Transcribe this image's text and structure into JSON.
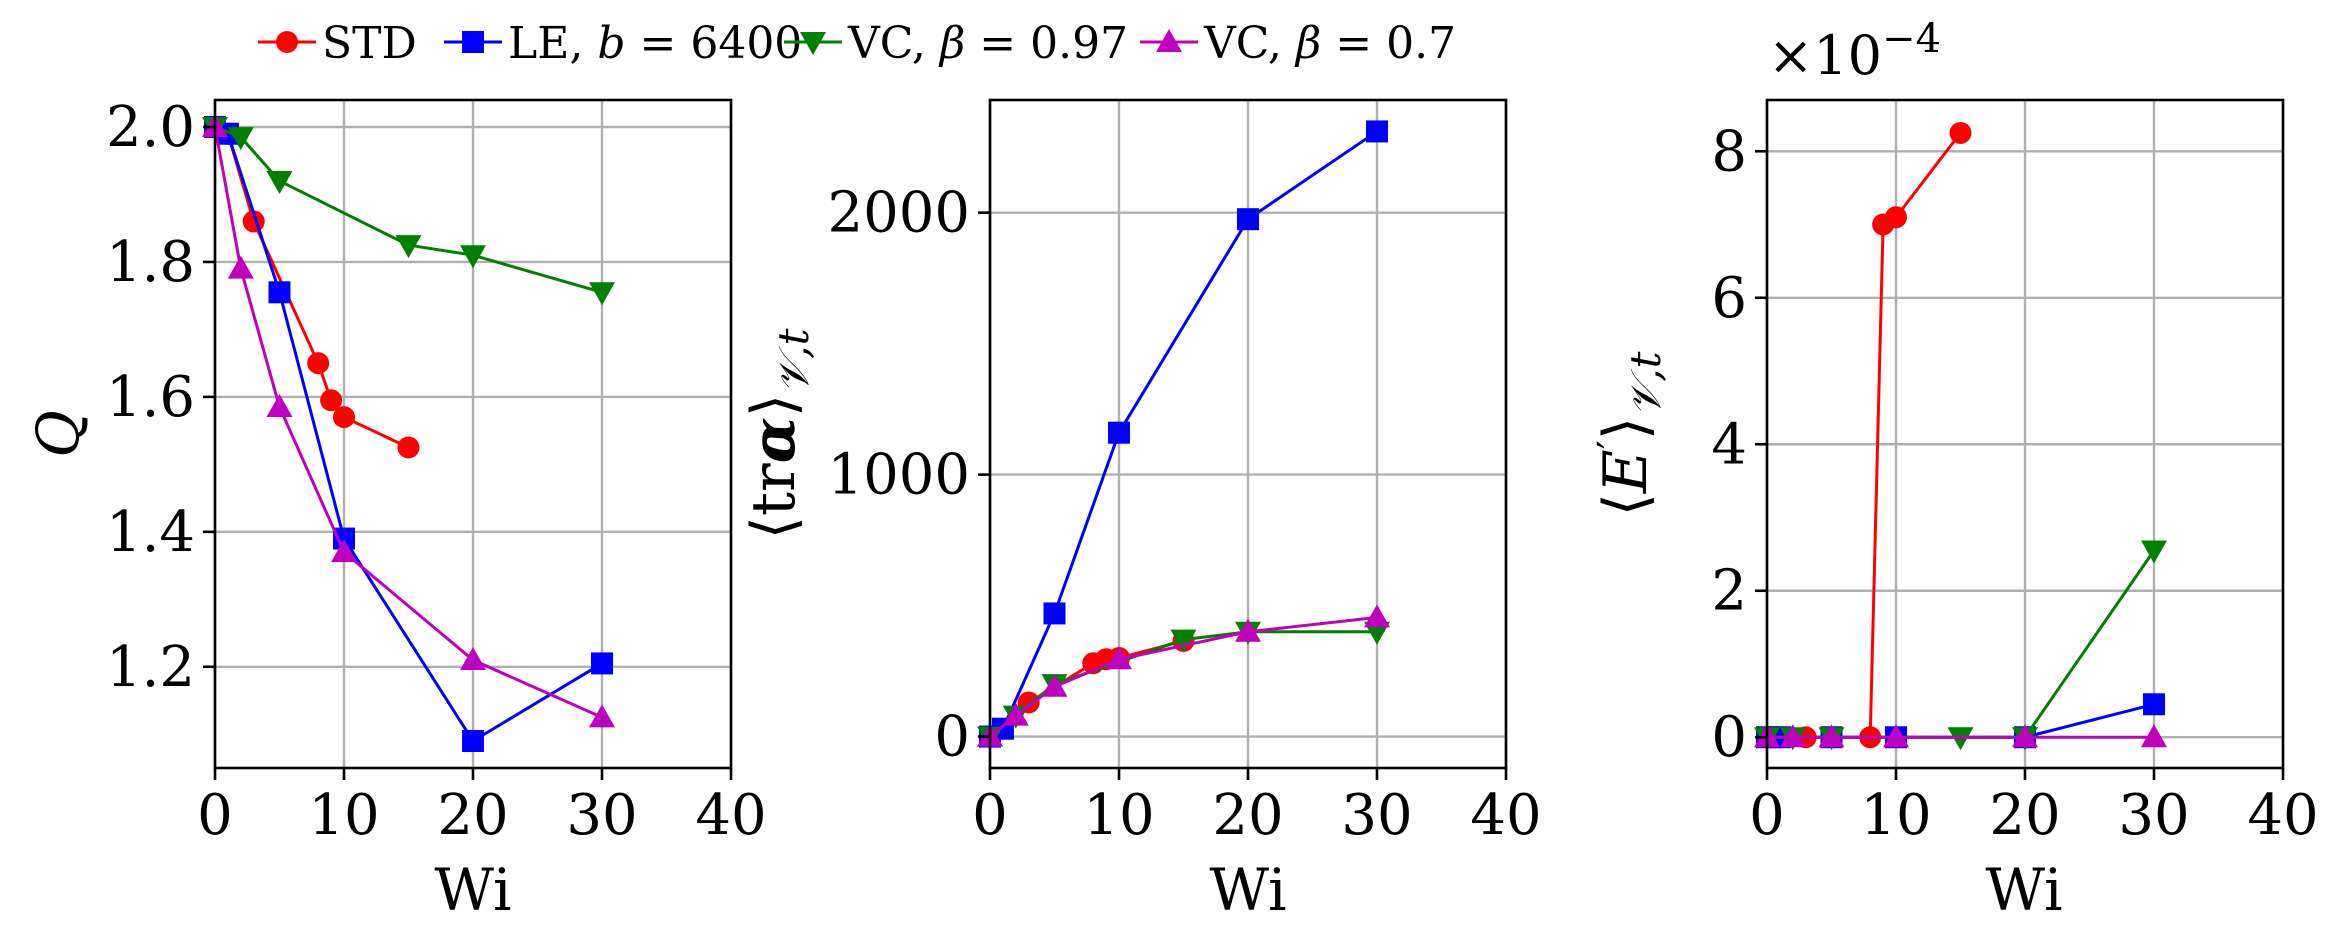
{
  "legend": [
    {
      "key": "STD",
      "label": "STD",
      "color": "#ff0000",
      "marker": "circle"
    },
    {
      "key": "LE",
      "label": "LE, b = 6400",
      "color": "#0000ff",
      "marker": "square"
    },
    {
      "key": "VC97",
      "label": "VC, β = 0.97",
      "color": "#008000",
      "marker": "triangle-down"
    },
    {
      "key": "VC7",
      "label": "VC, β = 0.7",
      "color": "#bf00bf",
      "marker": "triangle-up"
    }
  ],
  "chart_data": [
    {
      "type": "line",
      "xlabel": "Wi",
      "ylabel": "Q",
      "xlim": [
        0,
        40
      ],
      "ylim": [
        1.05,
        2.04
      ],
      "xticks": [
        0,
        10,
        20,
        30,
        40
      ],
      "yticks": [
        1.2,
        1.4,
        1.6,
        1.8,
        2.0
      ],
      "ytick_labels": [
        "1.2",
        "1.4",
        "1.6",
        "1.8",
        "2.0"
      ],
      "grid": true,
      "series": [
        {
          "name": "STD",
          "x": [
            0,
            1,
            3,
            8,
            9,
            10,
            15
          ],
          "y": [
            2.0,
            1.99,
            1.86,
            1.65,
            1.595,
            1.57,
            1.525
          ]
        },
        {
          "name": "LE, b = 6400",
          "x": [
            0,
            1,
            5,
            10,
            20,
            30
          ],
          "y": [
            2.0,
            1.99,
            1.755,
            1.39,
            1.09,
            1.205
          ]
        },
        {
          "name": "VC, β = 0.97",
          "x": [
            0,
            2,
            5,
            15,
            20,
            30
          ],
          "y": [
            2.0,
            1.985,
            1.92,
            1.825,
            1.81,
            1.755
          ]
        },
        {
          "name": "VC, β = 0.7",
          "x": [
            0,
            2,
            5,
            10,
            20,
            30
          ],
          "y": [
            2.0,
            1.79,
            1.585,
            1.37,
            1.21,
            1.125
          ]
        }
      ]
    },
    {
      "type": "line",
      "xlabel": "Wi",
      "ylabel": "⟨trα⟩𝒱,t",
      "xlim": [
        0,
        40
      ],
      "ylim": [
        -120,
        2430
      ],
      "xticks": [
        0,
        10,
        20,
        30,
        40
      ],
      "yticks": [
        0,
        1000,
        2000
      ],
      "ytick_labels": [
        "0",
        "1000",
        "2000"
      ],
      "grid": true,
      "series": [
        {
          "name": "STD",
          "x": [
            0,
            1,
            3,
            8,
            9,
            10,
            15
          ],
          "y": [
            0,
            30,
            130,
            280,
            295,
            300,
            365
          ]
        },
        {
          "name": "LE, b = 6400",
          "x": [
            0,
            1,
            5,
            10,
            20,
            30
          ],
          "y": [
            0,
            30,
            470,
            1160,
            1975,
            2310
          ]
        },
        {
          "name": "VC, β = 0.97",
          "x": [
            0,
            2,
            5,
            15,
            20,
            30
          ],
          "y": [
            0,
            80,
            200,
            370,
            400,
            400
          ]
        },
        {
          "name": "VC, β = 0.7",
          "x": [
            0,
            2,
            5,
            10,
            20,
            30
          ],
          "y": [
            0,
            80,
            190,
            295,
            400,
            455
          ]
        }
      ]
    },
    {
      "type": "line",
      "xlabel": "Wi",
      "ylabel": "⟨E′⟩𝒱,t",
      "offset_label": "×10−4",
      "xlim": [
        0,
        40
      ],
      "ylim": [
        -0.42,
        8.7
      ],
      "xticks": [
        0,
        10,
        20,
        30,
        40
      ],
      "yticks": [
        0,
        2,
        4,
        6,
        8
      ],
      "ytick_labels": [
        "0",
        "2",
        "4",
        "6",
        "8"
      ],
      "grid": true,
      "series": [
        {
          "name": "STD",
          "x": [
            0,
            1,
            3,
            8,
            9,
            10,
            15
          ],
          "y": [
            0,
            0,
            0,
            0,
            7.0,
            7.1,
            8.25
          ]
        },
        {
          "name": "LE, b = 6400",
          "x": [
            0,
            1,
            5,
            10,
            20,
            30
          ],
          "y": [
            0,
            0,
            0,
            0,
            0,
            0.45
          ]
        },
        {
          "name": "VC, β = 0.97",
          "x": [
            0,
            2,
            5,
            15,
            20,
            30
          ],
          "y": [
            0,
            0,
            0,
            0,
            0,
            2.55
          ]
        },
        {
          "name": "VC, β = 0.7",
          "x": [
            0,
            2,
            5,
            10,
            20,
            30
          ],
          "y": [
            0,
            0,
            0,
            0,
            0,
            0
          ]
        }
      ]
    }
  ]
}
